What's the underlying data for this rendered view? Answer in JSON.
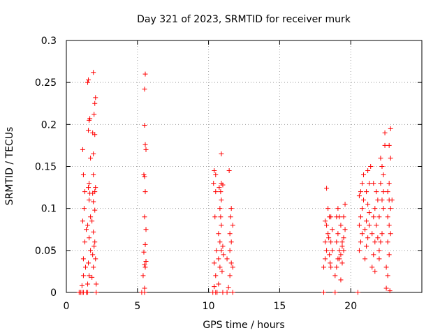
{
  "chart_data": {
    "type": "scatter",
    "title": "Day 321 of 2023, SRMTID for receiver murk",
    "xlabel": "GPS time / hours",
    "ylabel": "SRMTID / TECUs",
    "xlim": [
      0,
      25
    ],
    "ylim": [
      0,
      0.3
    ],
    "xticks": [
      0,
      5,
      10,
      15,
      20
    ],
    "xtick_labels": [
      "0",
      "5",
      "10",
      "15",
      "20"
    ],
    "yticks": [
      0,
      0.05,
      0.1,
      0.15,
      0.2,
      0.25,
      0.3
    ],
    "ytick_labels": [
      "0",
      "0.05",
      "0.1",
      "0.15",
      "0.2",
      "0.25",
      "0.3"
    ],
    "grid": true,
    "series": [
      {
        "name": "SRMTID",
        "marker": "+",
        "color": "#ff0000",
        "points": [
          [
            0.9,
            0.0
          ],
          [
            1.0,
            0.0
          ],
          [
            1.1,
            0.0
          ],
          [
            1.2,
            0.0
          ],
          [
            1.4,
            0.0
          ],
          [
            1.5,
            0.0
          ],
          [
            2.1,
            0.0
          ],
          [
            1.1,
            0.008
          ],
          [
            1.2,
            0.02
          ],
          [
            1.2,
            0.04
          ],
          [
            1.3,
            0.06
          ],
          [
            1.15,
            0.085
          ],
          [
            1.25,
            0.1
          ],
          [
            1.3,
            0.12
          ],
          [
            1.2,
            0.14
          ],
          [
            1.15,
            0.17
          ],
          [
            1.35,
            0.03
          ],
          [
            1.4,
            0.075
          ],
          [
            1.5,
            0.01
          ],
          [
            1.6,
            0.02
          ],
          [
            1.55,
            0.035
          ],
          [
            1.7,
            0.05
          ],
          [
            1.6,
            0.065
          ],
          [
            1.5,
            0.08
          ],
          [
            1.7,
            0.09
          ],
          [
            1.6,
            0.11
          ],
          [
            1.65,
            0.118
          ],
          [
            1.55,
            0.125
          ],
          [
            1.6,
            0.13
          ],
          [
            1.7,
            0.16
          ],
          [
            1.55,
            0.193
          ],
          [
            1.6,
            0.205
          ],
          [
            1.65,
            0.207
          ],
          [
            1.5,
            0.25
          ],
          [
            1.55,
            0.253
          ],
          [
            1.8,
            0.018
          ],
          [
            1.9,
            0.03
          ],
          [
            1.85,
            0.045
          ],
          [
            2.0,
            0.06
          ],
          [
            1.9,
            0.072
          ],
          [
            1.8,
            0.085
          ],
          [
            2.0,
            0.098
          ],
          [
            1.9,
            0.108
          ],
          [
            1.85,
            0.118
          ],
          [
            2.0,
            0.12
          ],
          [
            2.05,
            0.125
          ],
          [
            1.9,
            0.14
          ],
          [
            1.9,
            0.165
          ],
          [
            1.85,
            0.19
          ],
          [
            2.0,
            0.188
          ],
          [
            1.95,
            0.212
          ],
          [
            2.0,
            0.225
          ],
          [
            2.05,
            0.232
          ],
          [
            1.9,
            0.262
          ],
          [
            2.1,
            0.01
          ],
          [
            2.05,
            0.04
          ],
          [
            1.95,
            0.055
          ],
          [
            5.3,
            0.0
          ],
          [
            5.5,
            0.0
          ],
          [
            5.5,
            0.005
          ],
          [
            5.4,
            0.02
          ],
          [
            5.55,
            0.03
          ],
          [
            5.5,
            0.033
          ],
          [
            5.6,
            0.037
          ],
          [
            5.45,
            0.048
          ],
          [
            5.55,
            0.057
          ],
          [
            5.6,
            0.075
          ],
          [
            5.5,
            0.09
          ],
          [
            5.45,
            0.14
          ],
          [
            5.5,
            0.138
          ],
          [
            5.55,
            0.12
          ],
          [
            5.6,
            0.17
          ],
          [
            5.55,
            0.176
          ],
          [
            5.5,
            0.199
          ],
          [
            5.5,
            0.242
          ],
          [
            5.55,
            0.26
          ],
          [
            10.3,
            0.0
          ],
          [
            10.5,
            0.0
          ],
          [
            10.6,
            0.0
          ],
          [
            11.0,
            0.0
          ],
          [
            11.3,
            0.0
          ],
          [
            11.7,
            0.0
          ],
          [
            10.4,
            0.007
          ],
          [
            10.5,
            0.02
          ],
          [
            10.4,
            0.035
          ],
          [
            10.55,
            0.05
          ],
          [
            10.45,
            0.09
          ],
          [
            10.5,
            0.12
          ],
          [
            10.4,
            0.145
          ],
          [
            10.5,
            0.14
          ],
          [
            10.35,
            0.13
          ],
          [
            10.7,
            0.01
          ],
          [
            10.8,
            0.03
          ],
          [
            10.7,
            0.04
          ],
          [
            10.9,
            0.05
          ],
          [
            10.8,
            0.06
          ],
          [
            10.7,
            0.07
          ],
          [
            10.9,
            0.08
          ],
          [
            10.85,
            0.09
          ],
          [
            10.8,
            0.1
          ],
          [
            10.9,
            0.11
          ],
          [
            10.85,
            0.12
          ],
          [
            10.9,
            0.13
          ],
          [
            11.0,
            0.128
          ],
          [
            10.75,
            0.125
          ],
          [
            10.9,
            0.165
          ],
          [
            11.0,
            0.055
          ],
          [
            11.05,
            0.045
          ],
          [
            10.95,
            0.025
          ],
          [
            11.4,
            0.006
          ],
          [
            11.5,
            0.02
          ],
          [
            11.6,
            0.035
          ],
          [
            11.5,
            0.05
          ],
          [
            11.6,
            0.06
          ],
          [
            11.5,
            0.07
          ],
          [
            11.7,
            0.08
          ],
          [
            11.55,
            0.09
          ],
          [
            11.6,
            0.1
          ],
          [
            11.45,
            0.145
          ],
          [
            11.3,
            0.04
          ],
          [
            11.7,
            0.03
          ],
          [
            18.1,
            0.0
          ],
          [
            18.9,
            0.0
          ],
          [
            20.5,
            0.0
          ],
          [
            18.1,
            0.03
          ],
          [
            18.2,
            0.04
          ],
          [
            18.3,
            0.05
          ],
          [
            18.2,
            0.06
          ],
          [
            18.4,
            0.07
          ],
          [
            18.3,
            0.08
          ],
          [
            18.5,
            0.09
          ],
          [
            18.4,
            0.1
          ],
          [
            18.3,
            0.124
          ],
          [
            18.6,
            0.03
          ],
          [
            18.7,
            0.05
          ],
          [
            18.6,
            0.06
          ],
          [
            18.5,
            0.045
          ],
          [
            18.7,
            0.075
          ],
          [
            18.6,
            0.09
          ],
          [
            18.2,
            0.085
          ],
          [
            18.45,
            0.065
          ],
          [
            18.55,
            0.035
          ],
          [
            18.9,
            0.02
          ],
          [
            19.0,
            0.03
          ],
          [
            19.1,
            0.04
          ],
          [
            19.2,
            0.05
          ],
          [
            19.0,
            0.06
          ],
          [
            19.1,
            0.07
          ],
          [
            19.3,
            0.08
          ],
          [
            19.2,
            0.09
          ],
          [
            19.1,
            0.1
          ],
          [
            19.0,
            0.09
          ],
          [
            19.3,
            0.045
          ],
          [
            19.4,
            0.055
          ],
          [
            19.5,
            0.065
          ],
          [
            19.4,
            0.035
          ],
          [
            19.6,
            0.075
          ],
          [
            19.5,
            0.09
          ],
          [
            19.6,
            0.105
          ],
          [
            19.3,
            0.015
          ],
          [
            19.5,
            0.05
          ],
          [
            19.4,
            0.06
          ],
          [
            19.2,
            0.04
          ],
          [
            20.6,
            0.05
          ],
          [
            20.7,
            0.06
          ],
          [
            20.8,
            0.07
          ],
          [
            20.6,
            0.08
          ],
          [
            20.7,
            0.09
          ],
          [
            20.8,
            0.1
          ],
          [
            20.9,
            0.11
          ],
          [
            20.7,
            0.12
          ],
          [
            20.9,
            0.14
          ],
          [
            20.8,
            0.13
          ],
          [
            20.6,
            0.115
          ],
          [
            21.0,
            0.04
          ],
          [
            21.1,
            0.055
          ],
          [
            21.2,
            0.065
          ],
          [
            21.0,
            0.075
          ],
          [
            21.1,
            0.085
          ],
          [
            21.3,
            0.095
          ],
          [
            21.2,
            0.105
          ],
          [
            21.1,
            0.12
          ],
          [
            21.3,
            0.13
          ],
          [
            21.2,
            0.145
          ],
          [
            21.4,
            0.15
          ],
          [
            21.3,
            0.08
          ],
          [
            21.5,
            0.03
          ],
          [
            21.6,
            0.045
          ],
          [
            21.7,
            0.06
          ],
          [
            21.5,
            0.07
          ],
          [
            21.8,
            0.08
          ],
          [
            21.6,
            0.09
          ],
          [
            21.7,
            0.1
          ],
          [
            21.9,
            0.11
          ],
          [
            21.8,
            0.12
          ],
          [
            21.6,
            0.13
          ],
          [
            21.7,
            0.025
          ],
          [
            22.0,
            0.05
          ],
          [
            21.9,
            0.065
          ],
          [
            22.0,
            0.04
          ],
          [
            22.1,
            0.06
          ],
          [
            22.2,
            0.07
          ],
          [
            22.0,
            0.09
          ],
          [
            22.3,
            0.1
          ],
          [
            22.2,
            0.11
          ],
          [
            22.1,
            0.13
          ],
          [
            22.3,
            0.14
          ],
          [
            22.2,
            0.15
          ],
          [
            22.1,
            0.16
          ],
          [
            22.4,
            0.175
          ],
          [
            22.4,
            0.19
          ],
          [
            22.3,
            0.12
          ],
          [
            22.5,
            0.005
          ],
          [
            22.6,
            0.02
          ],
          [
            22.5,
            0.03
          ],
          [
            22.7,
            0.045
          ],
          [
            22.6,
            0.06
          ],
          [
            22.8,
            0.07
          ],
          [
            22.7,
            0.08
          ],
          [
            22.6,
            0.09
          ],
          [
            22.8,
            0.1
          ],
          [
            22.7,
            0.11
          ],
          [
            22.6,
            0.12
          ],
          [
            22.7,
            0.13
          ],
          [
            22.8,
            0.16
          ],
          [
            22.7,
            0.175
          ],
          [
            22.8,
            0.195
          ],
          [
            22.9,
            0.11
          ],
          [
            22.75,
            0.002
          ]
        ]
      }
    ]
  }
}
